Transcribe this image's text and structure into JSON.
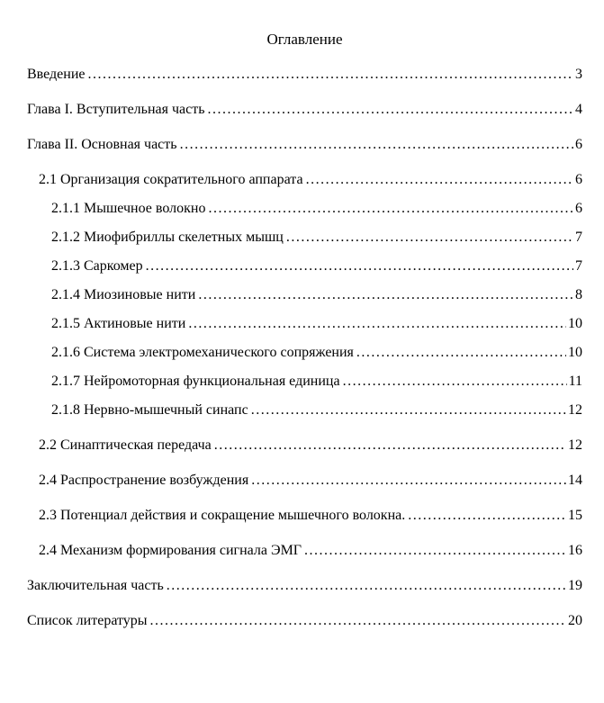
{
  "document": {
    "title": "Оглавление",
    "text_color": "#000000",
    "background_color": "#ffffff",
    "toc": [
      {
        "label": "Введение",
        "page": "3",
        "level": 0
      },
      {
        "label": "Глава I. Вступительная часть",
        "page": "4",
        "level": 0
      },
      {
        "label": "Глава II. Основная часть",
        "page": "6",
        "level": 0
      },
      {
        "label": "2.1 Организация сократительного аппарата",
        "page": "6",
        "level": 1
      },
      {
        "label": "2.1.1 Мышечное волокно",
        "page": "6",
        "level": 2
      },
      {
        "label": "2.1.2 Миофибриллы скелетных мышц",
        "page": "7",
        "level": 2
      },
      {
        "label": "2.1.3 Саркомер",
        "page": "7",
        "level": 2
      },
      {
        "label": "2.1.4 Миозиновые нити",
        "page": "8",
        "level": 2
      },
      {
        "label": "2.1.5 Актиновые нити",
        "page": "10",
        "level": 2
      },
      {
        "label": "2.1.6 Система электромеханического сопряжения",
        "page": "10",
        "level": 2
      },
      {
        "label": "2.1.7 Нейромоторная функциональная единица",
        "page": "11",
        "level": 2
      },
      {
        "label": "2.1.8 Нервно-мышечный синапс",
        "page": "12",
        "level": 2
      },
      {
        "label": "2.2 Синаптическая передача",
        "page": "12",
        "level": 1
      },
      {
        "label": "2.4 Распространение возбуждения",
        "page": "14",
        "level": 1
      },
      {
        "label": "2.3 Потенциал действия и сокращение мышечного волокна.",
        "page": "15",
        "level": 1
      },
      {
        "label": "2.4 Механизм формирования сигнала ЭМГ",
        "page": "16",
        "level": 1
      },
      {
        "label": "Заключительная часть",
        "page": "19",
        "level": 0
      },
      {
        "label": "Список литературы",
        "page": "20",
        "level": 0
      }
    ]
  }
}
